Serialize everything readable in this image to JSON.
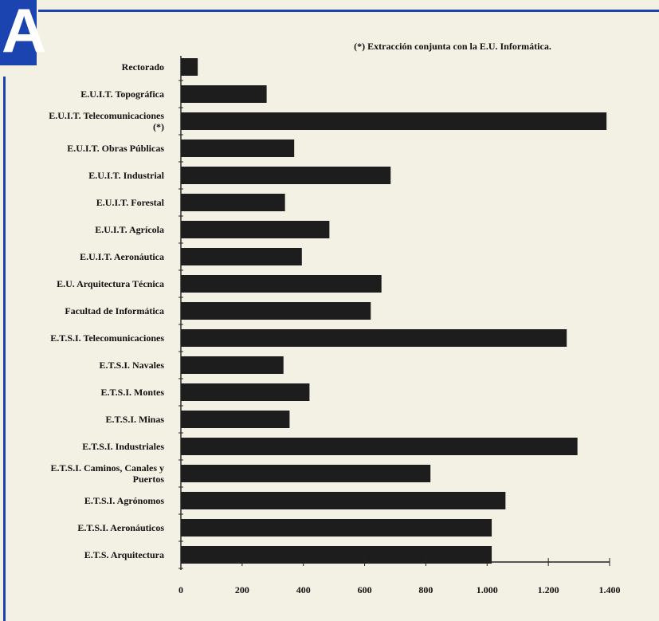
{
  "logo": {
    "letter": "A"
  },
  "chart_data": {
    "type": "bar",
    "orientation": "horizontal",
    "annotation": "(*) Extracción conjunta con la E.U. Informática.",
    "categories": [
      [
        "Rectorado"
      ],
      [
        "E.U.I.T. Topográfica"
      ],
      [
        "E.U.I.T. Telecomunicaciones",
        "(*)"
      ],
      [
        "E.U.I.T. Obras Públicas"
      ],
      [
        "E.U.I.T. Industrial"
      ],
      [
        "E.U.I.T. Forestal"
      ],
      [
        "E.U.I.T. Agrícola"
      ],
      [
        "E.U.I.T. Aeronáutica"
      ],
      [
        "E.U. Arquitectura Técnica"
      ],
      [
        "Facultad de Informática"
      ],
      [
        "E.T.S.I. Telecomunicaciones"
      ],
      [
        "E.T.S.I. Navales"
      ],
      [
        "E.T.S.I. Montes"
      ],
      [
        "E.T.S.I. Minas"
      ],
      [
        "E.T.S.I. Industriales"
      ],
      [
        "E.T.S.I. Caminos, Canales y",
        "Puertos"
      ],
      [
        "E.T.S.I. Agrónomos"
      ],
      [
        "E.T.S.I. Aeronáuticos"
      ],
      [
        "E.T.S. Arquitectura"
      ]
    ],
    "values": [
      55,
      280,
      1390,
      370,
      685,
      340,
      485,
      395,
      655,
      620,
      1260,
      335,
      420,
      355,
      1295,
      815,
      1060,
      1015,
      1015
    ],
    "xticks": [
      "0",
      "200",
      "400",
      "600",
      "800",
      "1.000",
      "1.200",
      "1.400"
    ],
    "xlim": [
      0,
      1400
    ],
    "bar_color": "#1d1d1d",
    "grid": false
  }
}
